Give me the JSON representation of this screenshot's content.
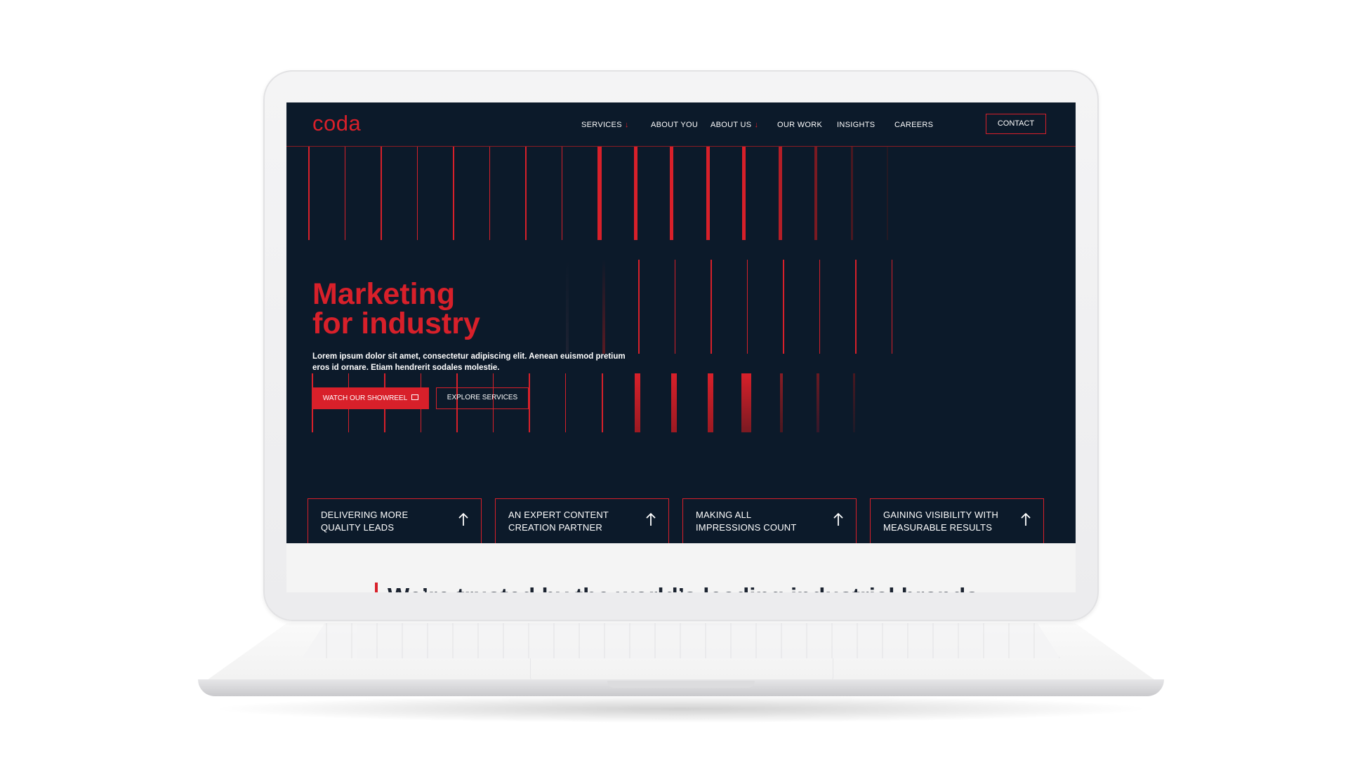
{
  "site": {
    "logo": "coda",
    "nav": {
      "items": [
        {
          "label": "SERVICES",
          "dropdown": true
        },
        {
          "label": "ABOUT YOU",
          "dropdown": false
        },
        {
          "label": "ABOUT US",
          "dropdown": true
        },
        {
          "label": "OUR WORK",
          "dropdown": false
        },
        {
          "label": "INSIGHTS",
          "dropdown": false
        },
        {
          "label": "CAREERS",
          "dropdown": false
        }
      ],
      "contact_label": "CONTACT"
    },
    "hero": {
      "title_line1": "Marketing",
      "title_line2": "for industry",
      "text": "Lorem ipsum dolor sit amet, consectetur adipiscing elit. Aenean euismod pretium eros id ornare. Etiam hendrerit sodales molestie.",
      "primary_button": "WATCH OUR SHOWREEL",
      "secondary_button": "EXPLORE SERVICES"
    },
    "cards": [
      {
        "text": "DELIVERING MORE\nQUALITY LEADS"
      },
      {
        "text": "AN EXPERT CONTENT\nCREATION PARTNER"
      },
      {
        "text": "MAKING ALL\nIMPRESSIONS COUNT"
      },
      {
        "text": "GAINING VISIBILITY WITH\nMEASURABLE RESULTS"
      }
    ],
    "trusted_heading": "We’re trusted by the world’s leading industrial brands"
  },
  "colors": {
    "background": "#0c1a2a",
    "accent": "#d8202a",
    "text": "#ffffff"
  },
  "icons": {
    "nav_dropdown": "arrow-down-icon",
    "showreel": "camera-icon",
    "card_arrow": "arrow-up-icon"
  }
}
